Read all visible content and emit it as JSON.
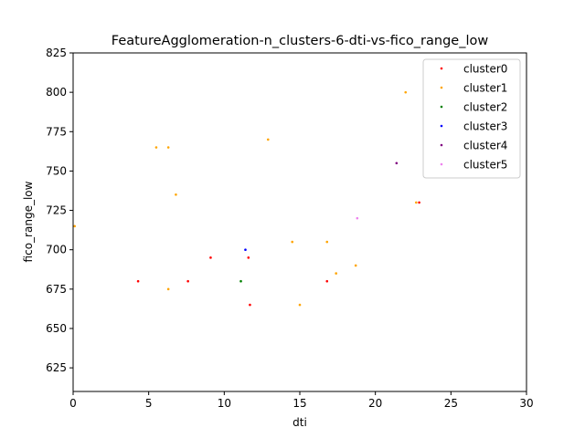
{
  "chart_data": {
    "type": "scatter",
    "title": "FeatureAgglomeration-n_clusters-6-dti-vs-fico_range_low",
    "xlabel": "dti",
    "ylabel": "fico_range_low",
    "xlim": [
      0,
      30
    ],
    "ylim": [
      610,
      825
    ],
    "xticks": [
      0,
      5,
      10,
      15,
      20,
      25,
      30
    ],
    "yticks": [
      625,
      650,
      675,
      700,
      725,
      750,
      775,
      800,
      825
    ],
    "grid": false,
    "legend_position": "top-right",
    "series": [
      {
        "name": "cluster0",
        "color": "#ff0000",
        "points": [
          [
            4.3,
            680
          ],
          [
            7.6,
            680
          ],
          [
            9.1,
            695
          ],
          [
            11.6,
            695
          ],
          [
            11.7,
            665
          ],
          [
            16.8,
            680
          ],
          [
            22.9,
            730
          ]
        ]
      },
      {
        "name": "cluster1",
        "color": "#ffa500",
        "points": [
          [
            0.1,
            715
          ],
          [
            5.5,
            765
          ],
          [
            6.3,
            765
          ],
          [
            6.8,
            735
          ],
          [
            6.3,
            675
          ],
          [
            12.9,
            770
          ],
          [
            14.5,
            705
          ],
          [
            16.8,
            705
          ],
          [
            15.0,
            665
          ],
          [
            17.4,
            685
          ],
          [
            18.7,
            690
          ],
          [
            22.0,
            800
          ],
          [
            22.7,
            730
          ]
        ]
      },
      {
        "name": "cluster2",
        "color": "#008000",
        "points": [
          [
            11.1,
            680
          ]
        ]
      },
      {
        "name": "cluster3",
        "color": "#0000ff",
        "points": [
          [
            11.4,
            700
          ]
        ]
      },
      {
        "name": "cluster4",
        "color": "#800080",
        "points": [
          [
            21.4,
            755
          ]
        ]
      },
      {
        "name": "cluster5",
        "color": "#ee82ee",
        "points": [
          [
            18.8,
            720
          ]
        ]
      }
    ]
  }
}
